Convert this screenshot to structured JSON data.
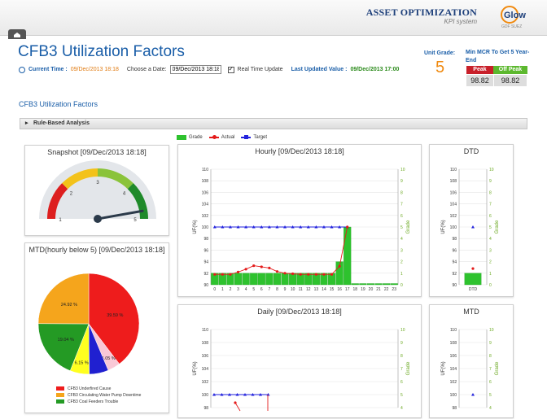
{
  "header": {
    "brand_title": "ASSET OPTIMIZATION",
    "brand_sub": "KPI system",
    "logo_text": "Glow",
    "logo_sub": "GDF SUEZ"
  },
  "page": {
    "title": "CFB3 Utilization Factors",
    "current_time_label": "Current Time :",
    "current_time_value": "09/Dec/2013 18:18",
    "choose_date_label": "Choose a Date:",
    "date_value": "09/Dec/2013 18:18",
    "real_time_label": "Real Time Update",
    "last_updated_label": "Last Updated Value :",
    "last_updated_value": "09/Dec/2013 17:00"
  },
  "unit": {
    "grade_label": "Unit Grade:",
    "grade_value": "5",
    "mcr_label": "Min MCR To Get 5 Year-End",
    "peak_label": "Peak",
    "offpeak_label": "Off Peak",
    "peak_value": "98.82",
    "offpeak_value": "98.82"
  },
  "section": {
    "title": "CFB3 Utilization Factors",
    "rule_bar": "Rule-Based Analysis"
  },
  "legend": {
    "grade": "Grade",
    "actual": "Actual",
    "target": "Target"
  },
  "colors": {
    "grade": "#2ec22e",
    "actual": "#e41b1b",
    "target": "#2222dd",
    "peak": "#c8202a",
    "offpeak": "#5cb82e",
    "title_blue": "#1a5ea8"
  },
  "panels": {
    "snapshot_title": "Snapshot [09/Dec/2013 18:18]",
    "mtd_pie_title": "MTD(hourly below 5) [09/Dec/2013 18:18]",
    "hourly_title": "Hourly [09/Dec/2013 18:18]",
    "dtd_title": "DTD",
    "daily_title": "Daily [09/Dec/2013 18:18]",
    "mtd_title": "MTD"
  },
  "gauge": {
    "value": 5,
    "min": 1,
    "max": 5,
    "ticks": [
      "1",
      "2",
      "3",
      "4",
      "5"
    ]
  },
  "chart_data": [
    {
      "type": "pie",
      "title": "MTD(hourly below 5) [09/Dec/2013 18:18]",
      "slices": [
        {
          "value": 39.59,
          "label": "39.59 %",
          "color": "#ee1c1c"
        },
        {
          "value": 4.05,
          "label": "4.05 %",
          "color": "#f9c8d6"
        },
        {
          "value": 6.15,
          "label": "",
          "color": "#2020d0"
        },
        {
          "value": 6.15,
          "label": "6.15 %",
          "color": "#ffff20"
        },
        {
          "value": 19.04,
          "label": "19.04 %",
          "color": "#249a24"
        },
        {
          "value": 24.92,
          "label": "24.92 %",
          "color": "#f5a51c"
        }
      ],
      "legend": [
        "CFB3 Underfired Cause",
        "CFB3 Circulating Water Pump Downtime",
        "CFB3 Coal Feeders Trouble"
      ],
      "legend_colors": [
        "#ee1c1c",
        "#f5a51c",
        "#249a24"
      ]
    },
    {
      "type": "bar",
      "title": "Hourly [09/Dec/2013 18:18]",
      "ylabel": "UF(%)",
      "y2label": "Grade",
      "ylim": [
        90,
        110
      ],
      "y2lim": [
        0,
        10
      ],
      "yticks": [
        "110",
        "108",
        "106",
        "104",
        "102",
        "100",
        "98",
        "96",
        "94",
        "92",
        "90"
      ],
      "y2ticks": [
        "10",
        "9",
        "8",
        "7",
        "6",
        "5",
        "4",
        "3",
        "2",
        "1",
        "0"
      ],
      "categories": [
        "0",
        "1",
        "2",
        "3",
        "4",
        "5",
        "6",
        "7",
        "8",
        "9",
        "10",
        "11",
        "12",
        "13",
        "14",
        "15",
        "16",
        "17",
        "18",
        "19",
        "20",
        "21",
        "22",
        "23"
      ],
      "grade": [
        1,
        1,
        1,
        1,
        1,
        1,
        1,
        1,
        1,
        1,
        1,
        1,
        1,
        1,
        1,
        1,
        2,
        5,
        0,
        0,
        0,
        0,
        0,
        0
      ],
      "actual": [
        91.8,
        91.8,
        91.8,
        92.2,
        92.7,
        93.3,
        93.1,
        92.9,
        92.3,
        92.0,
        91.9,
        91.8,
        91.8,
        91.8,
        91.8,
        91.8,
        93.2,
        100.0,
        null,
        null,
        null,
        null,
        null,
        null
      ],
      "target": [
        100,
        100,
        100,
        100,
        100,
        100,
        100,
        100,
        100,
        100,
        100,
        100,
        100,
        100,
        100,
        100,
        100,
        100,
        null,
        null,
        null,
        null,
        null,
        null
      ]
    },
    {
      "type": "bar",
      "title": "DTD",
      "ylabel": "UF(%)",
      "y2label": "Grade",
      "ylim": [
        90,
        110
      ],
      "y2lim": [
        0,
        10
      ],
      "yticks": [
        "110",
        "108",
        "106",
        "104",
        "102",
        "100",
        "98",
        "96",
        "94",
        "92",
        "90"
      ],
      "y2ticks": [
        "10",
        "9",
        "8",
        "7",
        "6",
        "5",
        "4",
        "3",
        "2",
        "1",
        "0"
      ],
      "categories": [
        "DTD"
      ],
      "grade": [
        1
      ],
      "actual": [
        92.8
      ],
      "target": [
        100
      ]
    },
    {
      "type": "line",
      "title": "Daily [09/Dec/2013 18:18]",
      "ylabel": "UF(%)",
      "y2label": "Grade",
      "yticks": [
        "110",
        "108",
        "106",
        "104",
        "102",
        "100",
        "98"
      ],
      "y2ticks": [
        "10",
        "9",
        "8",
        "7",
        "6",
        "5",
        "4"
      ]
    },
    {
      "type": "line",
      "title": "MTD",
      "ylabel": "UF(%)",
      "y2label": "Grade",
      "yticks": [
        "110",
        "108",
        "106",
        "104",
        "102",
        "100",
        "98"
      ],
      "y2ticks": [
        "10",
        "9",
        "8",
        "7",
        "6",
        "5",
        "4"
      ]
    }
  ]
}
